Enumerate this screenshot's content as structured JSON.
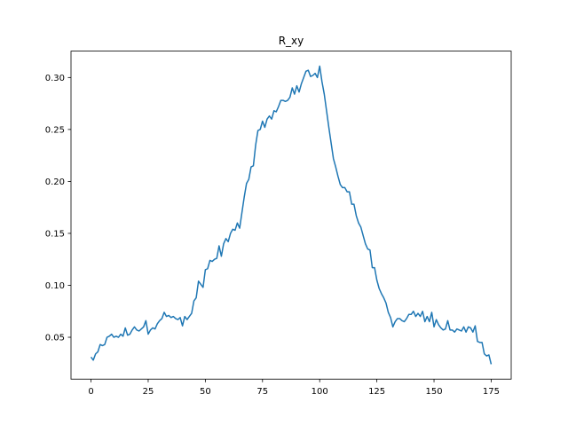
{
  "chart_data": {
    "type": "line",
    "title": "R_xy",
    "color": "#1f77b4",
    "values": [
      0.031,
      0.028,
      0.034,
      0.036,
      0.043,
      0.042,
      0.043,
      0.05,
      0.051,
      0.053,
      0.05,
      0.051,
      0.05,
      0.053,
      0.051,
      0.059,
      0.052,
      0.053,
      0.057,
      0.06,
      0.057,
      0.056,
      0.058,
      0.06,
      0.066,
      0.053,
      0.057,
      0.059,
      0.058,
      0.063,
      0.066,
      0.068,
      0.074,
      0.07,
      0.071,
      0.069,
      0.07,
      0.068,
      0.067,
      0.069,
      0.061,
      0.07,
      0.067,
      0.07,
      0.073,
      0.085,
      0.088,
      0.104,
      0.101,
      0.098,
      0.115,
      0.116,
      0.124,
      0.123,
      0.125,
      0.126,
      0.138,
      0.128,
      0.14,
      0.145,
      0.142,
      0.15,
      0.154,
      0.153,
      0.16,
      0.155,
      0.17,
      0.185,
      0.198,
      0.202,
      0.214,
      0.215,
      0.235,
      0.249,
      0.25,
      0.258,
      0.252,
      0.26,
      0.263,
      0.26,
      0.268,
      0.267,
      0.272,
      0.278,
      0.278,
      0.277,
      0.278,
      0.281,
      0.29,
      0.284,
      0.292,
      0.286,
      0.294,
      0.3,
      0.306,
      0.307,
      0.301,
      0.302,
      0.304,
      0.3,
      0.311,
      0.296,
      0.284,
      0.268,
      0.252,
      0.237,
      0.222,
      0.214,
      0.205,
      0.197,
      0.194,
      0.194,
      0.19,
      0.19,
      0.178,
      0.178,
      0.167,
      0.16,
      0.156,
      0.148,
      0.14,
      0.135,
      0.134,
      0.117,
      0.117,
      0.105,
      0.097,
      0.092,
      0.088,
      0.083,
      0.074,
      0.069,
      0.06,
      0.065,
      0.068,
      0.068,
      0.066,
      0.065,
      0.068,
      0.072,
      0.072,
      0.075,
      0.07,
      0.073,
      0.07,
      0.075,
      0.065,
      0.07,
      0.065,
      0.074,
      0.06,
      0.067,
      0.062,
      0.059,
      0.057,
      0.058,
      0.066,
      0.057,
      0.057,
      0.055,
      0.058,
      0.057,
      0.056,
      0.06,
      0.055,
      0.06,
      0.059,
      0.055,
      0.061,
      0.046,
      0.045,
      0.045,
      0.034,
      0.032,
      0.033,
      0.024
    ],
    "xlim": [
      -8.75,
      183.75
    ],
    "xticks": [
      0,
      25,
      50,
      75,
      100,
      125,
      150,
      175
    ],
    "ylim": [
      0.0097,
      0.3254
    ],
    "yticks": [
      0.05,
      {
        "value": 0.1,
        "label": "0.10"
      },
      0.15,
      {
        "value": 0.2,
        "label": "0.20"
      },
      0.25,
      {
        "value": 0.3,
        "label": "0.30"
      }
    ]
  }
}
